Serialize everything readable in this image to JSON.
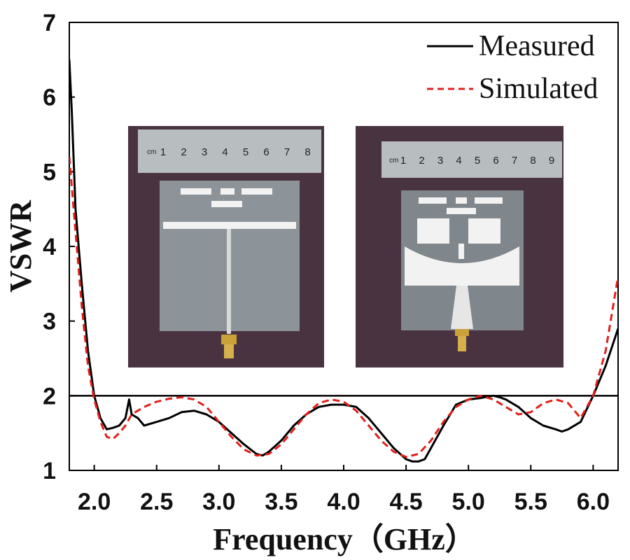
{
  "chart_data": {
    "type": "line",
    "title": "",
    "xlabel": "Frequency（GHz）",
    "ylabel": "VSWR",
    "xlim": [
      1.8,
      6.2
    ],
    "ylim": [
      1,
      7
    ],
    "xticks": [
      "2.0",
      "2.5",
      "3.0",
      "3.5",
      "4.0",
      "4.5",
      "5.0",
      "5.5",
      "6.0"
    ],
    "yticks": [
      "1",
      "2",
      "3",
      "4",
      "5",
      "6",
      "7"
    ],
    "reference_line": {
      "y": 2,
      "color": "#000000"
    },
    "legend": {
      "position": "top-right",
      "entries": [
        "Measured",
        "Simulated"
      ]
    },
    "grid": false,
    "series": [
      {
        "name": "Measured",
        "color": "#000000",
        "style": "solid",
        "x": [
          1.8,
          1.82,
          1.85,
          1.9,
          1.95,
          2.0,
          2.05,
          2.1,
          2.15,
          2.2,
          2.25,
          2.28,
          2.3,
          2.35,
          2.4,
          2.5,
          2.6,
          2.7,
          2.8,
          2.9,
          3.0,
          3.1,
          3.2,
          3.3,
          3.35,
          3.4,
          3.5,
          3.6,
          3.7,
          3.8,
          3.9,
          4.0,
          4.1,
          4.2,
          4.3,
          4.4,
          4.5,
          4.55,
          4.6,
          4.65,
          4.7,
          4.8,
          4.9,
          5.0,
          5.1,
          5.2,
          5.25,
          5.3,
          5.4,
          5.5,
          5.6,
          5.7,
          5.75,
          5.8,
          5.9,
          6.0,
          6.1,
          6.2
        ],
        "y": [
          6.5,
          5.8,
          4.5,
          3.5,
          2.6,
          2.0,
          1.7,
          1.55,
          1.57,
          1.6,
          1.7,
          1.95,
          1.75,
          1.7,
          1.6,
          1.65,
          1.7,
          1.78,
          1.8,
          1.75,
          1.65,
          1.5,
          1.35,
          1.22,
          1.2,
          1.25,
          1.4,
          1.6,
          1.75,
          1.85,
          1.88,
          1.88,
          1.85,
          1.7,
          1.5,
          1.3,
          1.15,
          1.12,
          1.12,
          1.15,
          1.3,
          1.6,
          1.88,
          1.95,
          1.97,
          2.0,
          1.98,
          1.95,
          1.85,
          1.7,
          1.6,
          1.55,
          1.52,
          1.55,
          1.65,
          2.0,
          2.4,
          2.9
        ]
      },
      {
        "name": "Simulated",
        "color": "#e0201b",
        "style": "dashed",
        "x": [
          1.8,
          1.85,
          1.9,
          1.95,
          2.0,
          2.05,
          2.1,
          2.15,
          2.2,
          2.25,
          2.3,
          2.4,
          2.5,
          2.6,
          2.7,
          2.8,
          2.9,
          3.0,
          3.1,
          3.2,
          3.3,
          3.4,
          3.5,
          3.6,
          3.7,
          3.8,
          3.9,
          4.0,
          4.1,
          4.2,
          4.3,
          4.4,
          4.5,
          4.6,
          4.7,
          4.8,
          4.9,
          5.0,
          5.1,
          5.2,
          5.3,
          5.4,
          5.5,
          5.6,
          5.7,
          5.8,
          5.9,
          6.0,
          6.1,
          6.2
        ],
        "y": [
          5.2,
          4.2,
          3.2,
          2.4,
          1.95,
          1.65,
          1.45,
          1.42,
          1.5,
          1.6,
          1.75,
          1.85,
          1.92,
          1.96,
          1.98,
          1.95,
          1.85,
          1.65,
          1.45,
          1.28,
          1.2,
          1.22,
          1.35,
          1.55,
          1.75,
          1.9,
          1.95,
          1.92,
          1.8,
          1.6,
          1.4,
          1.25,
          1.18,
          1.22,
          1.4,
          1.65,
          1.85,
          1.95,
          2.0,
          1.95,
          1.85,
          1.75,
          1.78,
          1.9,
          1.95,
          1.9,
          1.7,
          2.0,
          2.6,
          3.6
        ]
      }
    ]
  },
  "insets": [
    {
      "ruler_numbers": [
        "1",
        "2",
        "3",
        "4",
        "5",
        "6",
        "7",
        "8"
      ],
      "ruler_unit": "cm"
    },
    {
      "ruler_numbers": [
        "1",
        "2",
        "3",
        "4",
        "5",
        "6",
        "7",
        "8",
        "9"
      ],
      "ruler_unit": "cm"
    }
  ]
}
